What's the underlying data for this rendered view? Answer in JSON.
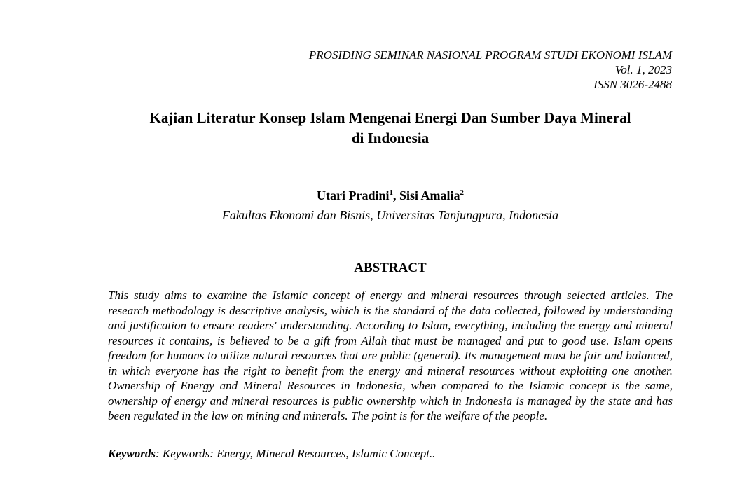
{
  "header": {
    "proceedings": "PROSIDING SEMINAR NASIONAL PROGRAM STUDI EKONOMI ISLAM",
    "volume": "Vol. 1, 2023",
    "issn": "ISSN 3026-2488"
  },
  "paper": {
    "title_line1": "Kajian Literatur Konsep Islam Mengenai Energi Dan Sumber Daya Mineral",
    "title_line2": "di Indonesia",
    "authors": [
      {
        "name": "Utari Pradini",
        "sup": "1"
      },
      {
        "name": "Sisi Amalia",
        "sup": "2"
      }
    ],
    "author_separator": ", ",
    "affiliation": "Fakultas Ekonomi dan Bisnis, Universitas Tanjungpura, Indonesia"
  },
  "abstract": {
    "heading": "ABSTRACT",
    "text": "This study aims to examine the Islamic concept of energy and mineral resources through selected articles. The research methodology is descriptive analysis, which is the standard of the data collected, followed by understanding and justification to ensure readers' understanding. According to Islam, everything, including the energy and mineral resources it contains, is believed to be a gift from Allah that must be managed and put to good use. Islam opens freedom for humans to utilize natural resources that are public (general). Its management must be fair and balanced, in which everyone has the right to benefit from the energy and mineral resources without exploiting one another. Ownership of Energy and Mineral Resources in Indonesia, when compared to the Islamic concept is the same, ownership of energy and mineral resources is public ownership which in Indonesia is managed by the state and has been regulated in the law on mining and minerals. The point is for the welfare of the people."
  },
  "keywords": {
    "label": "Keywords",
    "separator": ": ",
    "text": "Keywords: Energy, Mineral Resources, Islamic Concept.."
  }
}
